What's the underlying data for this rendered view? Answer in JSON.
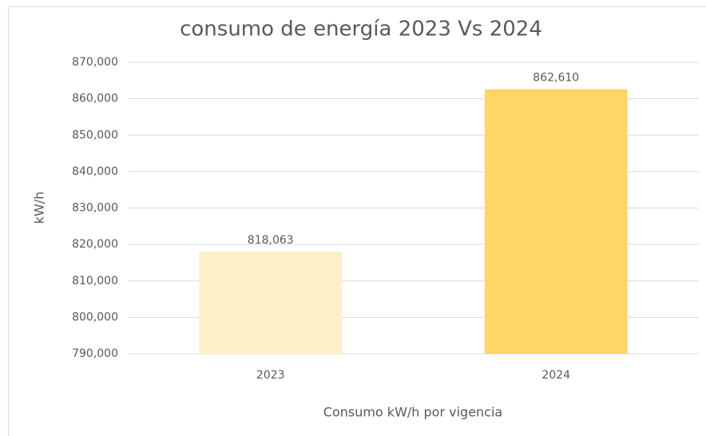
{
  "chart_data": {
    "type": "bar",
    "title": "consumo de energía 2023 Vs 2024",
    "x_label": "Consumo kW/h por vigencia",
    "y_label": "kW/h",
    "categories": [
      "2023",
      "2024"
    ],
    "values": [
      818063,
      862610
    ],
    "value_labels": [
      "818,063",
      "862,610"
    ],
    "colors": [
      "#fdf0c8",
      "#ffd565"
    ],
    "ylim": [
      790000,
      870000
    ],
    "yticks": [
      {
        "value": 790000,
        "label": "790,000"
      },
      {
        "value": 800000,
        "label": "800,000"
      },
      {
        "value": 810000,
        "label": "810,000"
      },
      {
        "value": 820000,
        "label": "820,000"
      },
      {
        "value": 830000,
        "label": "830,000"
      },
      {
        "value": 840000,
        "label": "840,000"
      },
      {
        "value": 850000,
        "label": "850,000"
      },
      {
        "value": 860000,
        "label": "860,000"
      },
      {
        "value": 870000,
        "label": "870,000"
      }
    ],
    "grid": true
  }
}
